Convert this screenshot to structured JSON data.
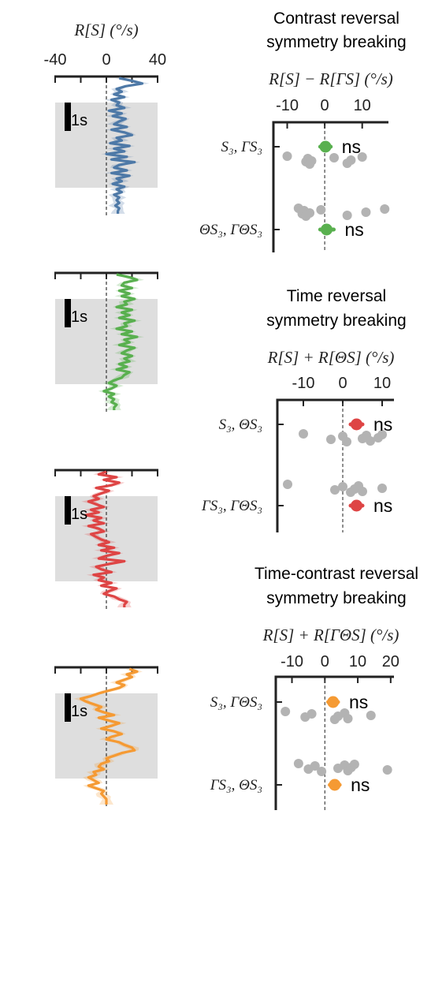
{
  "colors": {
    "blue": "#4e79a7",
    "green": "#59b04f",
    "red": "#de4545",
    "orange": "#f59a33",
    "gray_dots": "#b3b3b3",
    "stim_region": "#dedede",
    "axis": "#222222"
  },
  "left_axis": {
    "ylabel": "R[S] (°/s)",
    "ticks": [
      "-40",
      "0",
      "40"
    ],
    "tick_values": [
      -40,
      0,
      40
    ],
    "xlim": [
      -40,
      40
    ],
    "scale_bar_label": "1s"
  },
  "chart_data": [
    {
      "type": "line",
      "panel": "trace-contrast",
      "color_key": "blue",
      "series": [
        {
          "x": [
            0.0,
            0.2,
            0.4,
            0.6,
            0.8,
            1.0,
            1.2,
            1.4,
            1.6,
            1.8,
            2.0,
            2.2,
            2.4,
            2.6,
            2.8,
            3.0,
            3.2,
            3.4,
            3.6,
            3.8,
            4.0,
            4.2,
            4.4,
            4.6,
            4.8,
            5.0,
            5.2,
            5.4,
            5.6,
            5.8,
            6.0,
            6.2,
            6.4,
            6.6,
            6.8,
            7.0,
            7.2,
            7.4,
            7.6,
            7.8,
            8.0,
            8.2,
            8.4,
            8.6,
            8.8,
            9.0,
            9.2,
            9.4,
            9.6,
            9.8,
            10.0
          ],
          "y": [
            10,
            20,
            28,
            15,
            8,
            12,
            6,
            14,
            4,
            10,
            8,
            14,
            2,
            12,
            5,
            15,
            10,
            6,
            16,
            4,
            14,
            20,
            8,
            12,
            3,
            18,
            6,
            14,
            0,
            16,
            4,
            22,
            10,
            6,
            16,
            4,
            18,
            8,
            12,
            5,
            14,
            8,
            12,
            6,
            10,
            8,
            10,
            7,
            10,
            9,
            9
          ]
        }
      ]
    },
    {
      "type": "line",
      "panel": "trace-time",
      "color_key": "green",
      "series": [
        {
          "x": [
            0.0,
            0.2,
            0.4,
            0.6,
            0.8,
            1.0,
            1.2,
            1.4,
            1.6,
            1.8,
            2.0,
            2.2,
            2.4,
            2.6,
            2.8,
            3.0,
            3.2,
            3.4,
            3.6,
            3.8,
            4.0,
            4.2,
            4.4,
            4.6,
            4.8,
            5.0,
            5.2,
            5.4,
            5.6,
            5.8,
            6.0,
            6.2,
            6.4,
            6.6,
            6.8,
            7.0,
            7.2,
            7.4,
            7.6,
            7.8,
            8.0,
            8.2,
            8.4,
            8.6,
            8.8,
            9.0,
            9.2,
            9.4,
            9.6,
            9.8,
            10.0
          ],
          "y": [
            8,
            18,
            24,
            14,
            12,
            20,
            10,
            18,
            12,
            22,
            14,
            16,
            8,
            20,
            12,
            18,
            10,
            22,
            14,
            16,
            8,
            20,
            12,
            24,
            14,
            18,
            10,
            22,
            16,
            12,
            20,
            14,
            18,
            10,
            16,
            8,
            18,
            14,
            12,
            6,
            2,
            8,
            4,
            -2,
            6,
            2,
            6,
            4,
            8,
            6,
            6
          ]
        }
      ]
    },
    {
      "type": "line",
      "panel": "trace-time-contrast",
      "color_key": "red",
      "series": [
        {
          "x": [
            0.0,
            0.2,
            0.4,
            0.6,
            0.8,
            1.0,
            1.2,
            1.4,
            1.6,
            1.8,
            2.0,
            2.2,
            2.4,
            2.6,
            2.8,
            3.0,
            3.2,
            3.4,
            3.6,
            3.8,
            4.0,
            4.2,
            4.4,
            4.6,
            4.8,
            5.0,
            5.2,
            5.4,
            5.6,
            5.8,
            6.0,
            6.2,
            6.4,
            6.6,
            6.8,
            7.0,
            7.2,
            7.4,
            7.6,
            7.8,
            8.0,
            8.2,
            8.4,
            8.6,
            8.8,
            9.0,
            9.2,
            9.4,
            9.6,
            9.8,
            10.0
          ],
          "y": [
            0,
            -6,
            8,
            -2,
            10,
            4,
            -8,
            2,
            -4,
            -10,
            -6,
            -14,
            -8,
            -2,
            -12,
            -6,
            -16,
            -4,
            -10,
            -2,
            -14,
            -6,
            -2,
            -12,
            -8,
            -4,
            2,
            -6,
            6,
            -4,
            10,
            0,
            -6,
            14,
            2,
            -8,
            -4,
            4,
            -10,
            -2,
            -6,
            4,
            -4,
            8,
            2,
            -2,
            6,
            10,
            16,
            14,
            14
          ]
        }
      ]
    },
    {
      "type": "line",
      "panel": "trace-time-contrast-2",
      "color_key": "orange",
      "series": [
        {
          "x": [
            0.0,
            0.2,
            0.4,
            0.6,
            0.8,
            1.0,
            1.2,
            1.4,
            1.6,
            1.8,
            2.0,
            2.2,
            2.4,
            2.6,
            2.8,
            3.0,
            3.2,
            3.4,
            3.6,
            3.8,
            4.0,
            4.2,
            4.4,
            4.6,
            4.8,
            5.0,
            5.2,
            5.4,
            5.6,
            5.8,
            6.0,
            6.2,
            6.4,
            6.6,
            6.8,
            7.0,
            7.2,
            7.4,
            7.6,
            7.8,
            8.0,
            8.2,
            8.4,
            8.6,
            8.8,
            9.0,
            9.2,
            9.4,
            9.6,
            9.8,
            10.0
          ],
          "y": [
            18,
            24,
            16,
            20,
            14,
            8,
            14,
            10,
            2,
            -6,
            -12,
            -20,
            -16,
            -10,
            -4,
            -8,
            -2,
            6,
            -6,
            2,
            10,
            4,
            -4,
            6,
            12,
            4,
            0,
            10,
            14,
            20,
            22,
            12,
            6,
            0,
            2,
            -4,
            -6,
            -2,
            -10,
            -8,
            -14,
            -10,
            -6,
            -14,
            -8,
            -2,
            -4,
            -2,
            0,
            0,
            0
          ]
        }
      ]
    },
    {
      "type": "scatter",
      "panel": "summary-contrast",
      "title": [
        "Contrast reversal",
        "symmetry breaking"
      ],
      "xlabel": "R[S] − R[ΓS] (°/s)",
      "xlim": [
        -12,
        17
      ],
      "xticks": [
        -10,
        0,
        10
      ],
      "color_key": "green",
      "rows": [
        {
          "label": "S₃, ΓS₃",
          "points": [
            -10,
            -5,
            -4.5,
            -4,
            -3.5,
            2.5,
            6,
            7,
            10
          ],
          "mean": 0.2,
          "ci": [
            -1.2,
            1.6
          ],
          "significance": "ns"
        },
        {
          "label": "ΘS₃, ΓΘS₃",
          "points": [
            -7,
            -6,
            -5.5,
            -5,
            -4,
            -1,
            6,
            11,
            16
          ],
          "mean": 0.5,
          "ci": [
            -1.2,
            2.4
          ],
          "significance": "ns"
        }
      ]
    },
    {
      "type": "scatter",
      "panel": "summary-time",
      "title": [
        "Time reversal",
        "symmetry breaking"
      ],
      "xlabel": "R[S] + R[ΘS] (°/s)",
      "xlim": [
        -15,
        13
      ],
      "xticks": [
        -10,
        0,
        10
      ],
      "color_key": "red",
      "rows": [
        {
          "label": "S₃, ΘS₃",
          "points": [
            -10,
            -3,
            0,
            1,
            5,
            6,
            7,
            9,
            10
          ],
          "mean": 3.5,
          "ci": [
            2,
            5
          ],
          "significance": "ns"
        },
        {
          "label": "ΓS₃, ΓΘS₃",
          "points": [
            -14,
            -2,
            0,
            2,
            3,
            4,
            5,
            10
          ],
          "mean": 3.5,
          "ci": [
            2,
            5
          ],
          "significance": "ns"
        }
      ]
    },
    {
      "type": "scatter",
      "panel": "summary-time-contrast",
      "title": [
        "Time-contrast reversal",
        "symmetry breaking"
      ],
      "xlabel": "R[S] + R[ΓΘS] (°/s)",
      "xlim": [
        -13,
        21
      ],
      "xticks": [
        -10,
        0,
        10,
        20
      ],
      "xticklabels": [
        "-10",
        "0",
        "10",
        "20"
      ],
      "color_key": "orange",
      "rows": [
        {
          "label": "S₃, ΓΘS₃",
          "points": [
            -12,
            -6,
            -4,
            3,
            4,
            6,
            7,
            14
          ],
          "mean": 2.5,
          "ci": [
            1,
            4
          ],
          "significance": "ns"
        },
        {
          "label": "ΓS₃, ΘS₃",
          "points": [
            -8,
            -5,
            -3,
            -1,
            4,
            6,
            7,
            8,
            9,
            19
          ],
          "mean": 3,
          "ci": [
            1.5,
            4.5
          ],
          "significance": "ns"
        }
      ]
    }
  ]
}
